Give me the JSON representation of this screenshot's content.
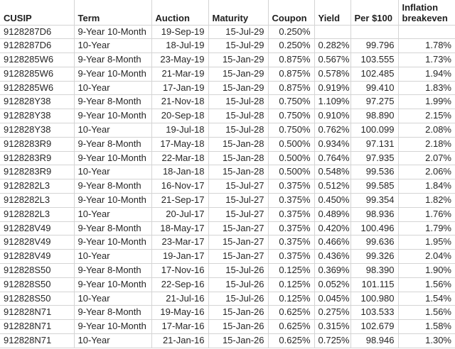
{
  "colors": {
    "background": "#ffffff",
    "gridline": "#d4d4d4",
    "text": "#262626"
  },
  "table": {
    "columns": [
      {
        "key": "cusip",
        "label": "CUSIP",
        "align": "left"
      },
      {
        "key": "term",
        "label": "Term",
        "align": "left"
      },
      {
        "key": "auction",
        "label": "Auction",
        "align": "right"
      },
      {
        "key": "maturity",
        "label": "Maturity",
        "align": "right"
      },
      {
        "key": "coupon",
        "label": "Coupon",
        "align": "right"
      },
      {
        "key": "yield",
        "label": "Yield",
        "align": "right"
      },
      {
        "key": "per100",
        "label": "Per $100",
        "align": "right"
      },
      {
        "key": "breakeven",
        "label": "Inflation breakeven",
        "align": "right"
      }
    ],
    "rows": [
      [
        "9128287D6",
        "9-Year 10-Month",
        "19-Sep-19",
        "15-Jul-29",
        "0.250%",
        "",
        "",
        ""
      ],
      [
        "9128287D6",
        "10-Year",
        "18-Jul-19",
        "15-Jul-29",
        "0.250%",
        "0.282%",
        "99.796",
        "1.78%"
      ],
      [
        "9128285W6",
        "9-Year 8-Month",
        "23-May-19",
        "15-Jan-29",
        "0.875%",
        "0.567%",
        "103.555",
        "1.73%"
      ],
      [
        "9128285W6",
        "9-Year 10-Month",
        "21-Mar-19",
        "15-Jan-29",
        "0.875%",
        "0.578%",
        "102.485",
        "1.94%"
      ],
      [
        "9128285W6",
        "10-Year",
        "17-Jan-19",
        "15-Jan-29",
        "0.875%",
        "0.919%",
        "99.410",
        "1.83%"
      ],
      [
        "912828Y38",
        "9-Year 8-Month",
        "21-Nov-18",
        "15-Jul-28",
        "0.750%",
        "1.109%",
        "97.275",
        "1.99%"
      ],
      [
        "912828Y38",
        "9-Year 10-Month",
        "20-Sep-18",
        "15-Jul-28",
        "0.750%",
        "0.910%",
        "98.890",
        "2.15%"
      ],
      [
        "912828Y38",
        "10-Year",
        "19-Jul-18",
        "15-Jul-28",
        "0.750%",
        "0.762%",
        "100.099",
        "2.08%"
      ],
      [
        "9128283R9",
        "9-Year 8-Month",
        "17-May-18",
        "15-Jan-28",
        "0.500%",
        "0.934%",
        "97.131",
        "2.18%"
      ],
      [
        "9128283R9",
        "9-Year 10-Month",
        "22-Mar-18",
        "15-Jan-28",
        "0.500%",
        "0.764%",
        "97.935",
        "2.07%"
      ],
      [
        "9128283R9",
        "10-Year",
        "18-Jan-18",
        "15-Jan-28",
        "0.500%",
        "0.548%",
        "99.536",
        "2.06%"
      ],
      [
        "9128282L3",
        "9-Year 8-Month",
        "16-Nov-17",
        "15-Jul-27",
        "0.375%",
        "0.512%",
        "99.585",
        "1.84%"
      ],
      [
        "9128282L3",
        "9-Year 10-Month",
        "21-Sep-17",
        "15-Jul-27",
        "0.375%",
        "0.450%",
        "99.354",
        "1.82%"
      ],
      [
        "9128282L3",
        "10-Year",
        "20-Jul-17",
        "15-Jul-27",
        "0.375%",
        "0.489%",
        "98.936",
        "1.76%"
      ],
      [
        "912828V49",
        "9-Year 8-Month",
        "18-May-17",
        "15-Jan-27",
        "0.375%",
        "0.420%",
        "100.496",
        "1.79%"
      ],
      [
        "912828V49",
        "9-Year 10-Month",
        "23-Mar-17",
        "15-Jan-27",
        "0.375%",
        "0.466%",
        "99.636",
        "1.95%"
      ],
      [
        "912828V49",
        "10-Year",
        "19-Jan-17",
        "15-Jan-27",
        "0.375%",
        "0.436%",
        "99.326",
        "2.04%"
      ],
      [
        "912828S50",
        "9-Year 8-Month",
        "17-Nov-16",
        "15-Jul-26",
        "0.125%",
        "0.369%",
        "98.390",
        "1.90%"
      ],
      [
        "912828S50",
        "9-Year 10-Month",
        "22-Sep-16",
        "15-Jul-26",
        "0.125%",
        "0.052%",
        "101.115",
        "1.56%"
      ],
      [
        "912828S50",
        "10-Year",
        "21-Jul-16",
        "15-Jul-26",
        "0.125%",
        "0.045%",
        "100.980",
        "1.54%"
      ],
      [
        "912828N71",
        "9-Year 8-Month",
        "19-May-16",
        "15-Jan-26",
        "0.625%",
        "0.275%",
        "103.533",
        "1.56%"
      ],
      [
        "912828N71",
        "9-Year 10-Month",
        "17-Mar-16",
        "15-Jan-26",
        "0.625%",
        "0.315%",
        "102.679",
        "1.58%"
      ],
      [
        "912828N71",
        "10-Year",
        "21-Jan-16",
        "15-Jan-26",
        "0.625%",
        "0.725%",
        "98.946",
        "1.30%"
      ]
    ]
  }
}
